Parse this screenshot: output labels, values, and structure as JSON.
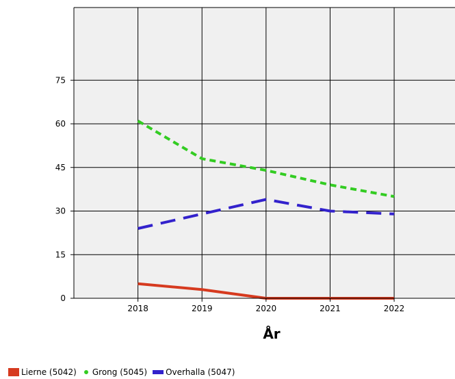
{
  "chart_data": {
    "type": "line",
    "title": "",
    "xlabel": "År",
    "ylabel": "",
    "categories": [
      "2018",
      "2019",
      "2020",
      "2021",
      "2022"
    ],
    "x_axis_range": [
      2017.0,
      2022.95
    ],
    "ylim": [
      0,
      100
    ],
    "y_ticks": [
      0,
      15,
      30,
      45,
      60,
      75
    ],
    "grid": true,
    "legend_position": "bottom-left",
    "series": [
      {
        "name": "Lierne (5042)",
        "values": [
          5,
          3,
          0,
          0,
          0
        ],
        "color": "#d63a1f",
        "style": "solid",
        "legend_marker": "square"
      },
      {
        "name": "Grong (5045)",
        "values": [
          61,
          48,
          44,
          39,
          35
        ],
        "color": "#33cc22",
        "style": "dotted",
        "legend_marker": "dot"
      },
      {
        "name": "Overhalla (5047)",
        "values": [
          24,
          29,
          34,
          30,
          29
        ],
        "color": "#3322cc",
        "style": "dashed",
        "legend_marker": "bar"
      }
    ]
  }
}
